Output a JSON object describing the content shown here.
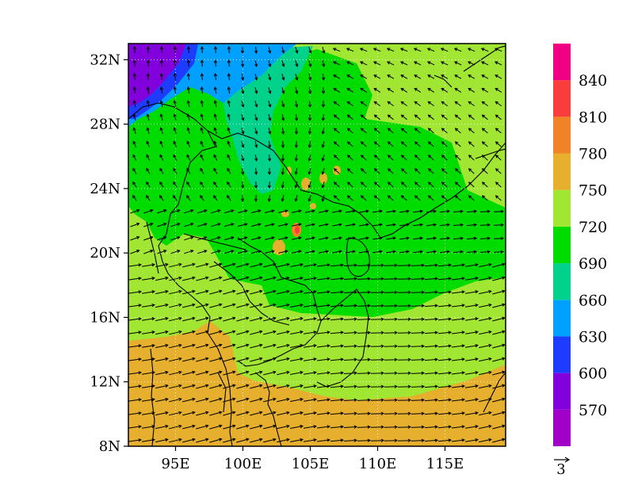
{
  "map": {
    "lat_labels": [
      "32N",
      "28N",
      "24N",
      "20N",
      "16N",
      "12N",
      "8N"
    ],
    "lat_values": [
      32,
      28,
      24,
      20,
      16,
      12,
      8
    ],
    "lon_labels": [
      "95E",
      "100E",
      "105E",
      "110E",
      "115E"
    ],
    "lon_values": [
      95,
      100,
      105,
      110,
      115
    ],
    "lon_range": [
      91.5,
      119.5
    ],
    "lat_range": [
      8,
      33
    ]
  },
  "colorbar": {
    "labels": [
      "570",
      "600",
      "630",
      "660",
      "690",
      "720",
      "750",
      "780",
      "810",
      "840"
    ],
    "colors": [
      "#a000c8",
      "#8200dc",
      "#1e3cff",
      "#00a0ff",
      "#00d28c",
      "#00dc00",
      "#a0e632",
      "#e6af2d",
      "#f08228",
      "#fa3c3c",
      "#f00082"
    ]
  },
  "vector_reference": {
    "label": "3"
  }
}
